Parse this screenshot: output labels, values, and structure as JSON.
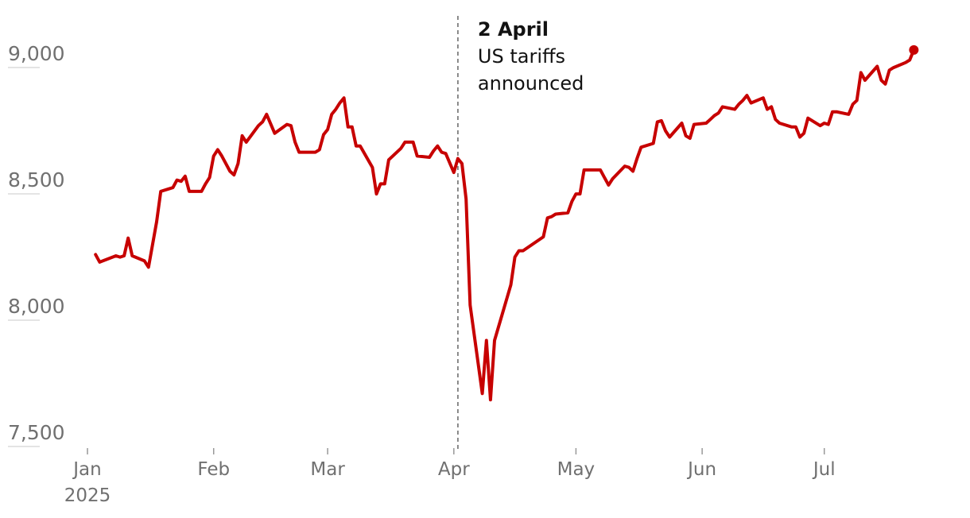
{
  "chart_data": {
    "type": "line",
    "title": "",
    "xlabel": "",
    "ylabel": "",
    "x_range": [
      "2025-01-01",
      "2025-07-27"
    ],
    "ylim": [
      7500,
      9050
    ],
    "y_ticks": [
      {
        "value": 9000,
        "label": "9,000"
      },
      {
        "value": 8500,
        "label": "8,500"
      },
      {
        "value": 8000,
        "label": "8,000"
      },
      {
        "value": 7500,
        "label": "7,500"
      }
    ],
    "x_ticks": [
      {
        "date": "2025-01-01",
        "label": "Jan",
        "sublabel": "2025"
      },
      {
        "date": "2025-02-01",
        "label": "Feb",
        "sublabel": ""
      },
      {
        "date": "2025-03-01",
        "label": "Mar",
        "sublabel": ""
      },
      {
        "date": "2025-04-01",
        "label": "Apr",
        "sublabel": ""
      },
      {
        "date": "2025-05-01",
        "label": "May",
        "sublabel": ""
      },
      {
        "date": "2025-06-01",
        "label": "Jun",
        "sublabel": ""
      },
      {
        "date": "2025-07-01",
        "label": "Jul",
        "sublabel": ""
      }
    ],
    "grid": false,
    "line_color": "#c70000",
    "annotation": {
      "date": "2025-04-02",
      "title": "2 April",
      "lines": [
        "US tariffs",
        "announced"
      ]
    },
    "series": [
      {
        "values": [
          [
            "2025-01-03",
            8200
          ],
          [
            "2025-01-04",
            8170
          ],
          [
            "2025-01-08",
            8195
          ],
          [
            "2025-01-09",
            8190
          ],
          [
            "2025-01-10",
            8195
          ],
          [
            "2025-01-11",
            8265
          ],
          [
            "2025-01-12",
            8195
          ],
          [
            "2025-01-15",
            8175
          ],
          [
            "2025-01-16",
            8150
          ],
          [
            "2025-01-18",
            8330
          ],
          [
            "2025-01-19",
            8450
          ],
          [
            "2025-01-21",
            8460
          ],
          [
            "2025-01-22",
            8465
          ],
          [
            "2025-01-23",
            8495
          ],
          [
            "2025-01-24",
            8490
          ],
          [
            "2025-01-25",
            8510
          ],
          [
            "2025-01-26",
            8450
          ],
          [
            "2025-01-29",
            8450
          ],
          [
            "2025-01-30",
            8480
          ],
          [
            "2025-01-31",
            8505
          ],
          [
            "2025-02-01",
            8590
          ],
          [
            "2025-02-02",
            8615
          ],
          [
            "2025-02-03",
            8590
          ],
          [
            "2025-02-04",
            8560
          ],
          [
            "2025-02-05",
            8530
          ],
          [
            "2025-02-06",
            8515
          ],
          [
            "2025-02-07",
            8560
          ],
          [
            "2025-02-08",
            8670
          ],
          [
            "2025-02-09",
            8645
          ],
          [
            "2025-02-12",
            8710
          ],
          [
            "2025-02-13",
            8725
          ],
          [
            "2025-02-14",
            8755
          ],
          [
            "2025-02-16",
            8680
          ],
          [
            "2025-02-19",
            8715
          ],
          [
            "2025-02-20",
            8710
          ],
          [
            "2025-02-21",
            8645
          ],
          [
            "2025-02-22",
            8605
          ],
          [
            "2025-02-23",
            8605
          ],
          [
            "2025-02-26",
            8605
          ],
          [
            "2025-02-27",
            8615
          ],
          [
            "2025-02-28",
            8675
          ],
          [
            "2025-03-01",
            8695
          ],
          [
            "2025-03-02",
            8755
          ],
          [
            "2025-03-03",
            8775
          ],
          [
            "2025-03-04",
            8800
          ],
          [
            "2025-03-05",
            8820
          ],
          [
            "2025-03-06",
            8705
          ],
          [
            "2025-03-07",
            8705
          ],
          [
            "2025-03-08",
            8630
          ],
          [
            "2025-03-09",
            8630
          ],
          [
            "2025-03-12",
            8545
          ],
          [
            "2025-03-13",
            8440
          ],
          [
            "2025-03-14",
            8480
          ],
          [
            "2025-03-15",
            8480
          ],
          [
            "2025-03-16",
            8575
          ],
          [
            "2025-03-19",
            8620
          ],
          [
            "2025-03-20",
            8645
          ],
          [
            "2025-03-21",
            8645
          ],
          [
            "2025-03-22",
            8645
          ],
          [
            "2025-03-23",
            8590
          ],
          [
            "2025-03-26",
            8585
          ],
          [
            "2025-03-27",
            8610
          ],
          [
            "2025-03-28",
            8630
          ],
          [
            "2025-03-29",
            8605
          ],
          [
            "2025-03-30",
            8600
          ],
          [
            "2025-04-01",
            8525
          ],
          [
            "2025-04-02",
            8580
          ],
          [
            "2025-04-03",
            8560
          ],
          [
            "2025-04-04",
            8420
          ],
          [
            "2025-04-05",
            8000
          ],
          [
            "2025-04-08",
            7650
          ],
          [
            "2025-04-09",
            7860
          ],
          [
            "2025-04-10",
            7625
          ],
          [
            "2025-04-11",
            7860
          ],
          [
            "2025-04-15",
            8080
          ],
          [
            "2025-04-16",
            8190
          ],
          [
            "2025-04-17",
            8215
          ],
          [
            "2025-04-18",
            8215
          ],
          [
            "2025-04-23",
            8270
          ],
          [
            "2025-04-24",
            8345
          ],
          [
            "2025-04-25",
            8350
          ],
          [
            "2025-04-26",
            8360
          ],
          [
            "2025-04-29",
            8365
          ],
          [
            "2025-04-30",
            8410
          ],
          [
            "2025-05-01",
            8440
          ],
          [
            "2025-05-02",
            8440
          ],
          [
            "2025-05-03",
            8535
          ],
          [
            "2025-05-06",
            8535
          ],
          [
            "2025-05-07",
            8535
          ],
          [
            "2025-05-08",
            8505
          ],
          [
            "2025-05-09",
            8475
          ],
          [
            "2025-05-10",
            8500
          ],
          [
            "2025-05-13",
            8550
          ],
          [
            "2025-05-14",
            8545
          ],
          [
            "2025-05-15",
            8530
          ],
          [
            "2025-05-16",
            8580
          ],
          [
            "2025-05-17",
            8625
          ],
          [
            "2025-05-20",
            8640
          ],
          [
            "2025-05-21",
            8725
          ],
          [
            "2025-05-22",
            8730
          ],
          [
            "2025-05-23",
            8690
          ],
          [
            "2025-05-24",
            8665
          ],
          [
            "2025-05-27",
            8720
          ],
          [
            "2025-05-28",
            8670
          ],
          [
            "2025-05-29",
            8660
          ],
          [
            "2025-05-30",
            8715
          ],
          [
            "2025-06-02",
            8720
          ],
          [
            "2025-06-03",
            8735
          ],
          [
            "2025-06-04",
            8750
          ],
          [
            "2025-06-05",
            8760
          ],
          [
            "2025-06-06",
            8785
          ],
          [
            "2025-06-09",
            8775
          ],
          [
            "2025-06-10",
            8795
          ],
          [
            "2025-06-11",
            8810
          ],
          [
            "2025-06-12",
            8830
          ],
          [
            "2025-06-13",
            8800
          ],
          [
            "2025-06-16",
            8820
          ],
          [
            "2025-06-17",
            8775
          ],
          [
            "2025-06-18",
            8785
          ],
          [
            "2025-06-19",
            8735
          ],
          [
            "2025-06-20",
            8720
          ],
          [
            "2025-06-23",
            8705
          ],
          [
            "2025-06-24",
            8705
          ],
          [
            "2025-06-25",
            8665
          ],
          [
            "2025-06-26",
            8680
          ],
          [
            "2025-06-27",
            8740
          ],
          [
            "2025-06-30",
            8710
          ],
          [
            "2025-07-01",
            8720
          ],
          [
            "2025-07-02",
            8715
          ],
          [
            "2025-07-03",
            8765
          ],
          [
            "2025-07-04",
            8765
          ],
          [
            "2025-07-07",
            8755
          ],
          [
            "2025-07-08",
            8795
          ],
          [
            "2025-07-09",
            8810
          ],
          [
            "2025-07-10",
            8920
          ],
          [
            "2025-07-11",
            8890
          ],
          [
            "2025-07-14",
            8945
          ],
          [
            "2025-07-15",
            8890
          ],
          [
            "2025-07-16",
            8875
          ],
          [
            "2025-07-17",
            8930
          ],
          [
            "2025-07-18",
            8940
          ],
          [
            "2025-07-21",
            8960
          ],
          [
            "2025-07-22",
            8970
          ],
          [
            "2025-07-23",
            9010
          ]
        ]
      }
    ]
  }
}
